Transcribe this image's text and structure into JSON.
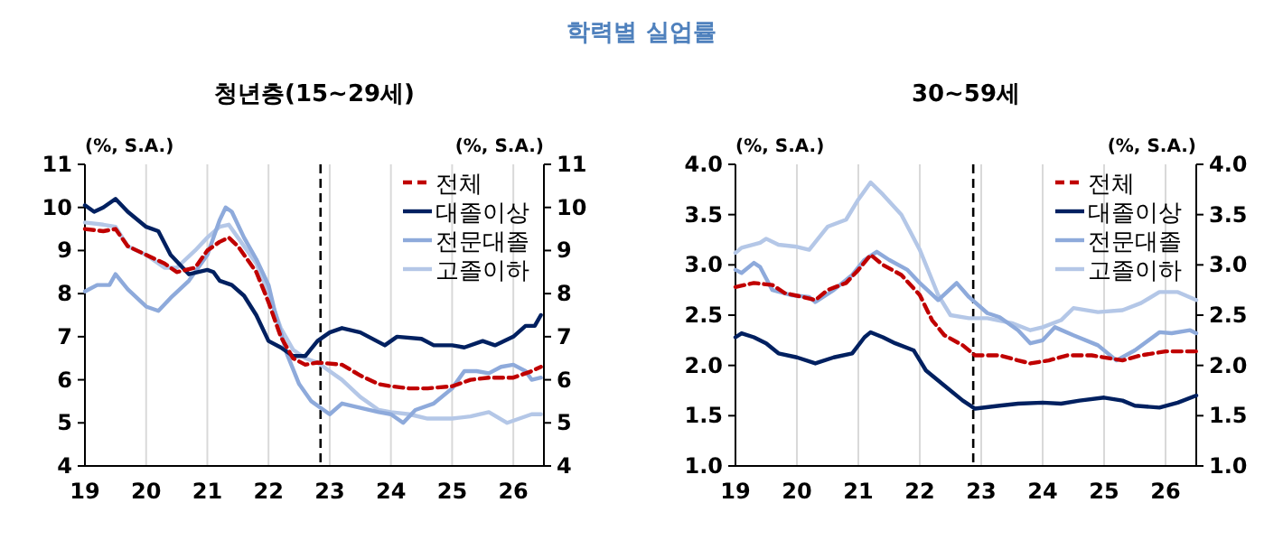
{
  "chart_data": [
    {
      "type": "line",
      "title": "청년층(15~29세)",
      "annotations": [
        "학력별 실업률"
      ],
      "ylabel": "(%, S.A.)",
      "y2label": "(%, S.A.)",
      "xlim": [
        19,
        26.5
      ],
      "xticks": [
        19,
        20,
        21,
        22,
        23,
        24,
        25,
        26
      ],
      "ylim": [
        4,
        11
      ],
      "yticks": [
        4,
        5,
        6,
        7,
        8,
        9,
        10,
        11
      ],
      "y2lim": [
        4,
        11
      ],
      "y2ticks": [
        4,
        5,
        6,
        7,
        8,
        9,
        10,
        11
      ],
      "grid": "x",
      "legend": "top right",
      "ref_lines": [
        {
          "axis": "x",
          "value": 22.85,
          "color": "#000000",
          "line_style": "dashed"
        }
      ],
      "series": [
        {
          "name": "전체",
          "color": "#c00000",
          "line_style": "dashed",
          "x": [
            19,
            19.3,
            19.5,
            19.7,
            20,
            20.3,
            20.5,
            20.8,
            21,
            21.2,
            21.35,
            21.5,
            21.8,
            22,
            22.2,
            22.4,
            22.6,
            22.8,
            23.2,
            23.5,
            23.8,
            24,
            24.3,
            24.6,
            25,
            25.3,
            25.6,
            26,
            26.3,
            26.45
          ],
          "values": [
            9.5,
            9.45,
            9.5,
            9.1,
            8.9,
            8.7,
            8.5,
            8.6,
            9.0,
            9.2,
            9.3,
            9.1,
            8.5,
            7.8,
            7.0,
            6.5,
            6.35,
            6.4,
            6.35,
            6.1,
            5.9,
            5.85,
            5.8,
            5.8,
            5.85,
            6.0,
            6.05,
            6.05,
            6.2,
            6.3
          ]
        },
        {
          "name": "대졸이상",
          "color": "#002060",
          "line_style": "solid",
          "x": [
            19,
            19.15,
            19.3,
            19.5,
            19.7,
            20,
            20.2,
            20.4,
            20.7,
            21,
            21.1,
            21.2,
            21.4,
            21.6,
            21.8,
            22,
            22.2,
            22.4,
            22.6,
            22.8,
            23,
            23.2,
            23.5,
            23.9,
            24.1,
            24.5,
            24.7,
            25,
            25.2,
            25.5,
            25.7,
            26,
            26.2,
            26.35,
            26.45
          ],
          "values": [
            10.05,
            9.9,
            10.0,
            10.2,
            9.9,
            9.55,
            9.45,
            8.9,
            8.45,
            8.55,
            8.5,
            8.3,
            8.2,
            7.95,
            7.5,
            6.9,
            6.75,
            6.55,
            6.55,
            6.9,
            7.1,
            7.2,
            7.1,
            6.8,
            7.0,
            6.95,
            6.8,
            6.8,
            6.75,
            6.9,
            6.8,
            7.0,
            7.25,
            7.25,
            7.5
          ]
        },
        {
          "name": "전문대졸",
          "color": "#8eaadb",
          "line_style": "solid",
          "x": [
            19,
            19.2,
            19.4,
            19.5,
            19.7,
            20,
            20.2,
            20.4,
            20.7,
            21,
            21.2,
            21.3,
            21.4,
            21.6,
            21.8,
            22,
            22.1,
            22.3,
            22.5,
            22.7,
            22.9,
            23,
            23.2,
            23.5,
            23.8,
            24,
            24.2,
            24.4,
            24.7,
            25,
            25.2,
            25.4,
            25.6,
            25.8,
            26,
            26.2,
            26.3,
            26.45
          ],
          "values": [
            8.05,
            8.2,
            8.2,
            8.45,
            8.1,
            7.7,
            7.6,
            7.9,
            8.3,
            8.9,
            9.7,
            10.0,
            9.9,
            9.3,
            8.8,
            8.2,
            7.6,
            6.6,
            5.9,
            5.5,
            5.3,
            5.2,
            5.45,
            5.35,
            5.25,
            5.2,
            5.0,
            5.3,
            5.45,
            5.8,
            6.2,
            6.2,
            6.15,
            6.3,
            6.35,
            6.2,
            6.0,
            6.05
          ]
        },
        {
          "name": "고졸이하",
          "color": "#b4c7e7",
          "line_style": "solid",
          "x": [
            19,
            19.3,
            19.5,
            19.7,
            20,
            20.3,
            20.5,
            20.8,
            21,
            21.2,
            21.35,
            21.5,
            21.8,
            22,
            22.2,
            22.4,
            22.6,
            22.8,
            23.2,
            23.5,
            23.8,
            24,
            24.3,
            24.6,
            25,
            25.3,
            25.6,
            25.9,
            26.1,
            26.3,
            26.45
          ],
          "values": [
            9.65,
            9.6,
            9.55,
            9.1,
            8.9,
            8.6,
            8.6,
            9.0,
            9.3,
            9.55,
            9.6,
            9.3,
            8.7,
            8.0,
            7.2,
            6.7,
            6.5,
            6.4,
            6.0,
            5.6,
            5.3,
            5.25,
            5.2,
            5.1,
            5.1,
            5.15,
            5.25,
            5.0,
            5.1,
            5.2,
            5.2
          ]
        }
      ]
    },
    {
      "type": "line",
      "title": "30~59세",
      "ylabel": "(%, S.A.)",
      "y2label": "(%, S.A.)",
      "xlim": [
        19,
        26.5
      ],
      "xticks": [
        19,
        20,
        21,
        22,
        23,
        24,
        25,
        26
      ],
      "ylim": [
        1,
        4
      ],
      "yticks": [
        {
          "value": 1,
          "label": "1.0"
        },
        1.5,
        {
          "value": 2,
          "label": "2.0"
        },
        2.5,
        {
          "value": 3,
          "label": "3.0"
        },
        3.5,
        {
          "value": 4,
          "label": "4.0"
        }
      ],
      "y2lim": [
        1,
        4
      ],
      "y2ticks": [
        {
          "value": 1,
          "label": "1.0"
        },
        1.5,
        {
          "value": 2,
          "label": "2.0"
        },
        2.5,
        {
          "value": 3,
          "label": "3.0"
        },
        3.5,
        {
          "value": 4,
          "label": "4.0"
        }
      ],
      "grid": "x",
      "legend": "top right",
      "ref_lines": [
        {
          "axis": "x",
          "value": 22.87,
          "color": "#000000",
          "line_style": "dashed"
        }
      ],
      "series": [
        {
          "name": "전체",
          "color": "#c00000",
          "line_style": "dashed",
          "x": [
            19,
            19.3,
            19.6,
            19.8,
            20.1,
            20.3,
            20.5,
            20.8,
            21,
            21.2,
            21.4,
            21.7,
            22,
            22.2,
            22.4,
            22.7,
            22.9,
            23.3,
            23.6,
            23.8,
            24.1,
            24.4,
            24.8,
            25.1,
            25.3,
            25.6,
            26,
            26.5
          ],
          "values": [
            2.78,
            2.82,
            2.8,
            2.72,
            2.68,
            2.65,
            2.75,
            2.82,
            2.95,
            3.1,
            3.0,
            2.9,
            2.7,
            2.45,
            2.3,
            2.2,
            2.1,
            2.1,
            2.05,
            2.02,
            2.05,
            2.1,
            2.1,
            2.07,
            2.05,
            2.1,
            2.14,
            2.14
          ]
        },
        {
          "name": "대졸이상",
          "color": "#002060",
          "line_style": "solid",
          "x": [
            19,
            19.1,
            19.3,
            19.5,
            19.7,
            20,
            20.3,
            20.6,
            20.9,
            21.1,
            21.2,
            21.4,
            21.6,
            21.9,
            22.1,
            22.4,
            22.7,
            22.9,
            23.3,
            23.6,
            24,
            24.3,
            24.6,
            25,
            25.3,
            25.5,
            25.9,
            26.2,
            26.5
          ],
          "values": [
            2.28,
            2.32,
            2.28,
            2.22,
            2.12,
            2.08,
            2.02,
            2.08,
            2.12,
            2.28,
            2.33,
            2.28,
            2.22,
            2.15,
            1.95,
            1.8,
            1.65,
            1.57,
            1.6,
            1.62,
            1.63,
            1.62,
            1.65,
            1.68,
            1.65,
            1.6,
            1.58,
            1.63,
            1.7
          ]
        },
        {
          "name": "전문대졸",
          "color": "#8eaadb",
          "line_style": "solid",
          "x": [
            19,
            19.1,
            19.3,
            19.4,
            19.6,
            19.9,
            20.2,
            20.3,
            20.6,
            20.9,
            21.1,
            21.3,
            21.5,
            21.8,
            22,
            22.3,
            22.6,
            22.8,
            23.1,
            23.3,
            23.6,
            23.8,
            24,
            24.2,
            24.5,
            24.9,
            25.2,
            25.5,
            25.9,
            26.1,
            26.4,
            26.5
          ],
          "values": [
            2.95,
            2.92,
            3.02,
            2.98,
            2.75,
            2.7,
            2.68,
            2.63,
            2.75,
            2.9,
            3.05,
            3.13,
            3.05,
            2.95,
            2.82,
            2.65,
            2.82,
            2.68,
            2.52,
            2.48,
            2.35,
            2.22,
            2.25,
            2.38,
            2.3,
            2.2,
            2.05,
            2.15,
            2.33,
            2.32,
            2.35,
            2.32
          ]
        },
        {
          "name": "고졸이하",
          "color": "#b4c7e7",
          "line_style": "solid",
          "x": [
            19,
            19.1,
            19.4,
            19.5,
            19.7,
            20,
            20.2,
            20.5,
            20.8,
            21,
            21.2,
            21.4,
            21.7,
            22,
            22.3,
            22.5,
            22.8,
            23.1,
            23.5,
            23.8,
            24,
            24.3,
            24.5,
            24.9,
            25.3,
            25.6,
            25.9,
            26.2,
            26.5
          ],
          "values": [
            3.12,
            3.17,
            3.22,
            3.26,
            3.2,
            3.18,
            3.15,
            3.38,
            3.45,
            3.65,
            3.82,
            3.7,
            3.5,
            3.15,
            2.7,
            2.5,
            2.47,
            2.47,
            2.42,
            2.35,
            2.38,
            2.45,
            2.57,
            2.53,
            2.55,
            2.62,
            2.73,
            2.73,
            2.65
          ]
        }
      ]
    }
  ]
}
